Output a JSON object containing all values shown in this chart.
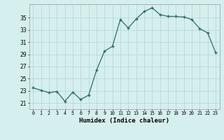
{
  "x": [
    0,
    1,
    2,
    3,
    4,
    5,
    6,
    7,
    8,
    9,
    10,
    11,
    12,
    13,
    14,
    15,
    16,
    17,
    18,
    19,
    20,
    21,
    22,
    23
  ],
  "y": [
    23.5,
    23.1,
    22.7,
    22.9,
    21.3,
    22.8,
    21.6,
    22.3,
    26.4,
    29.5,
    30.3,
    34.7,
    33.3,
    34.8,
    36.0,
    36.6,
    35.5,
    35.2,
    35.2,
    35.1,
    34.7,
    33.2,
    32.5,
    29.3
  ],
  "line_color": "#2d6e5e",
  "marker": "+",
  "marker_size": 3,
  "marker_lw": 1.0,
  "line_width": 0.9,
  "background_color": "#d5eeee",
  "grid_color": "#b8d8d8",
  "xlabel": "Humidex (Indice chaleur)",
  "ytick_labels": [
    "21",
    "23",
    "25",
    "27",
    "29",
    "31",
    "33",
    "35"
  ],
  "ytick_vals": [
    21,
    23,
    25,
    27,
    29,
    31,
    33,
    35
  ],
  "xtick_labels": [
    "0",
    "1",
    "2",
    "3",
    "4",
    "5",
    "6",
    "7",
    "8",
    "9",
    "10",
    "11",
    "12",
    "13",
    "14",
    "15",
    "16",
    "17",
    "18",
    "19",
    "20",
    "21",
    "22",
    "23"
  ],
  "xlim": [
    -0.5,
    23.5
  ],
  "ylim": [
    20.0,
    37.2
  ],
  "xlabel_fontsize": 6.5,
  "xlabel_bold": true,
  "ytick_fontsize": 5.5,
  "xtick_fontsize": 4.8
}
